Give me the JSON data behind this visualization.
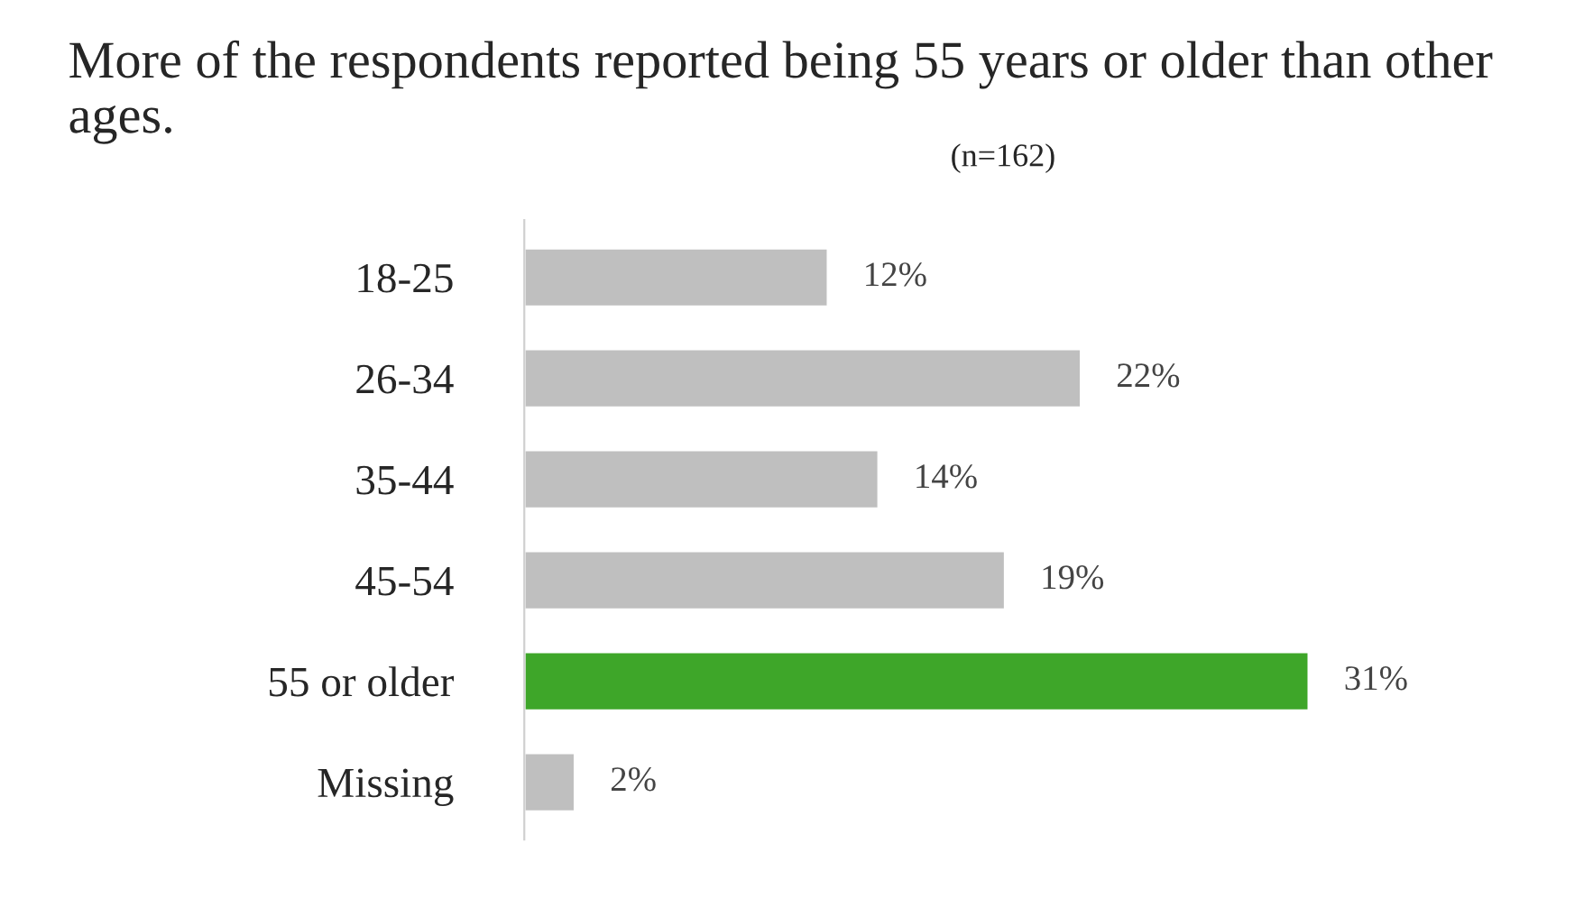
{
  "chart_data": {
    "type": "bar",
    "orientation": "horizontal",
    "title": "More of the respondents reported being 55 years or older than other ages.",
    "annotations": [
      "(n=162)"
    ],
    "categories": [
      "18-25",
      "26-34",
      "35-44",
      "45-54",
      "55 or older",
      "Missing"
    ],
    "values": [
      12,
      22,
      14,
      19,
      31,
      2
    ],
    "value_labels": [
      "12%",
      "22%",
      "14%",
      "19%",
      "31%",
      "2%"
    ],
    "colors": [
      "#bfbfbf",
      "#bfbfbf",
      "#bfbfbf",
      "#bfbfbf",
      "#3ea629",
      "#bfbfbf"
    ],
    "grid": false,
    "legend": false
  }
}
